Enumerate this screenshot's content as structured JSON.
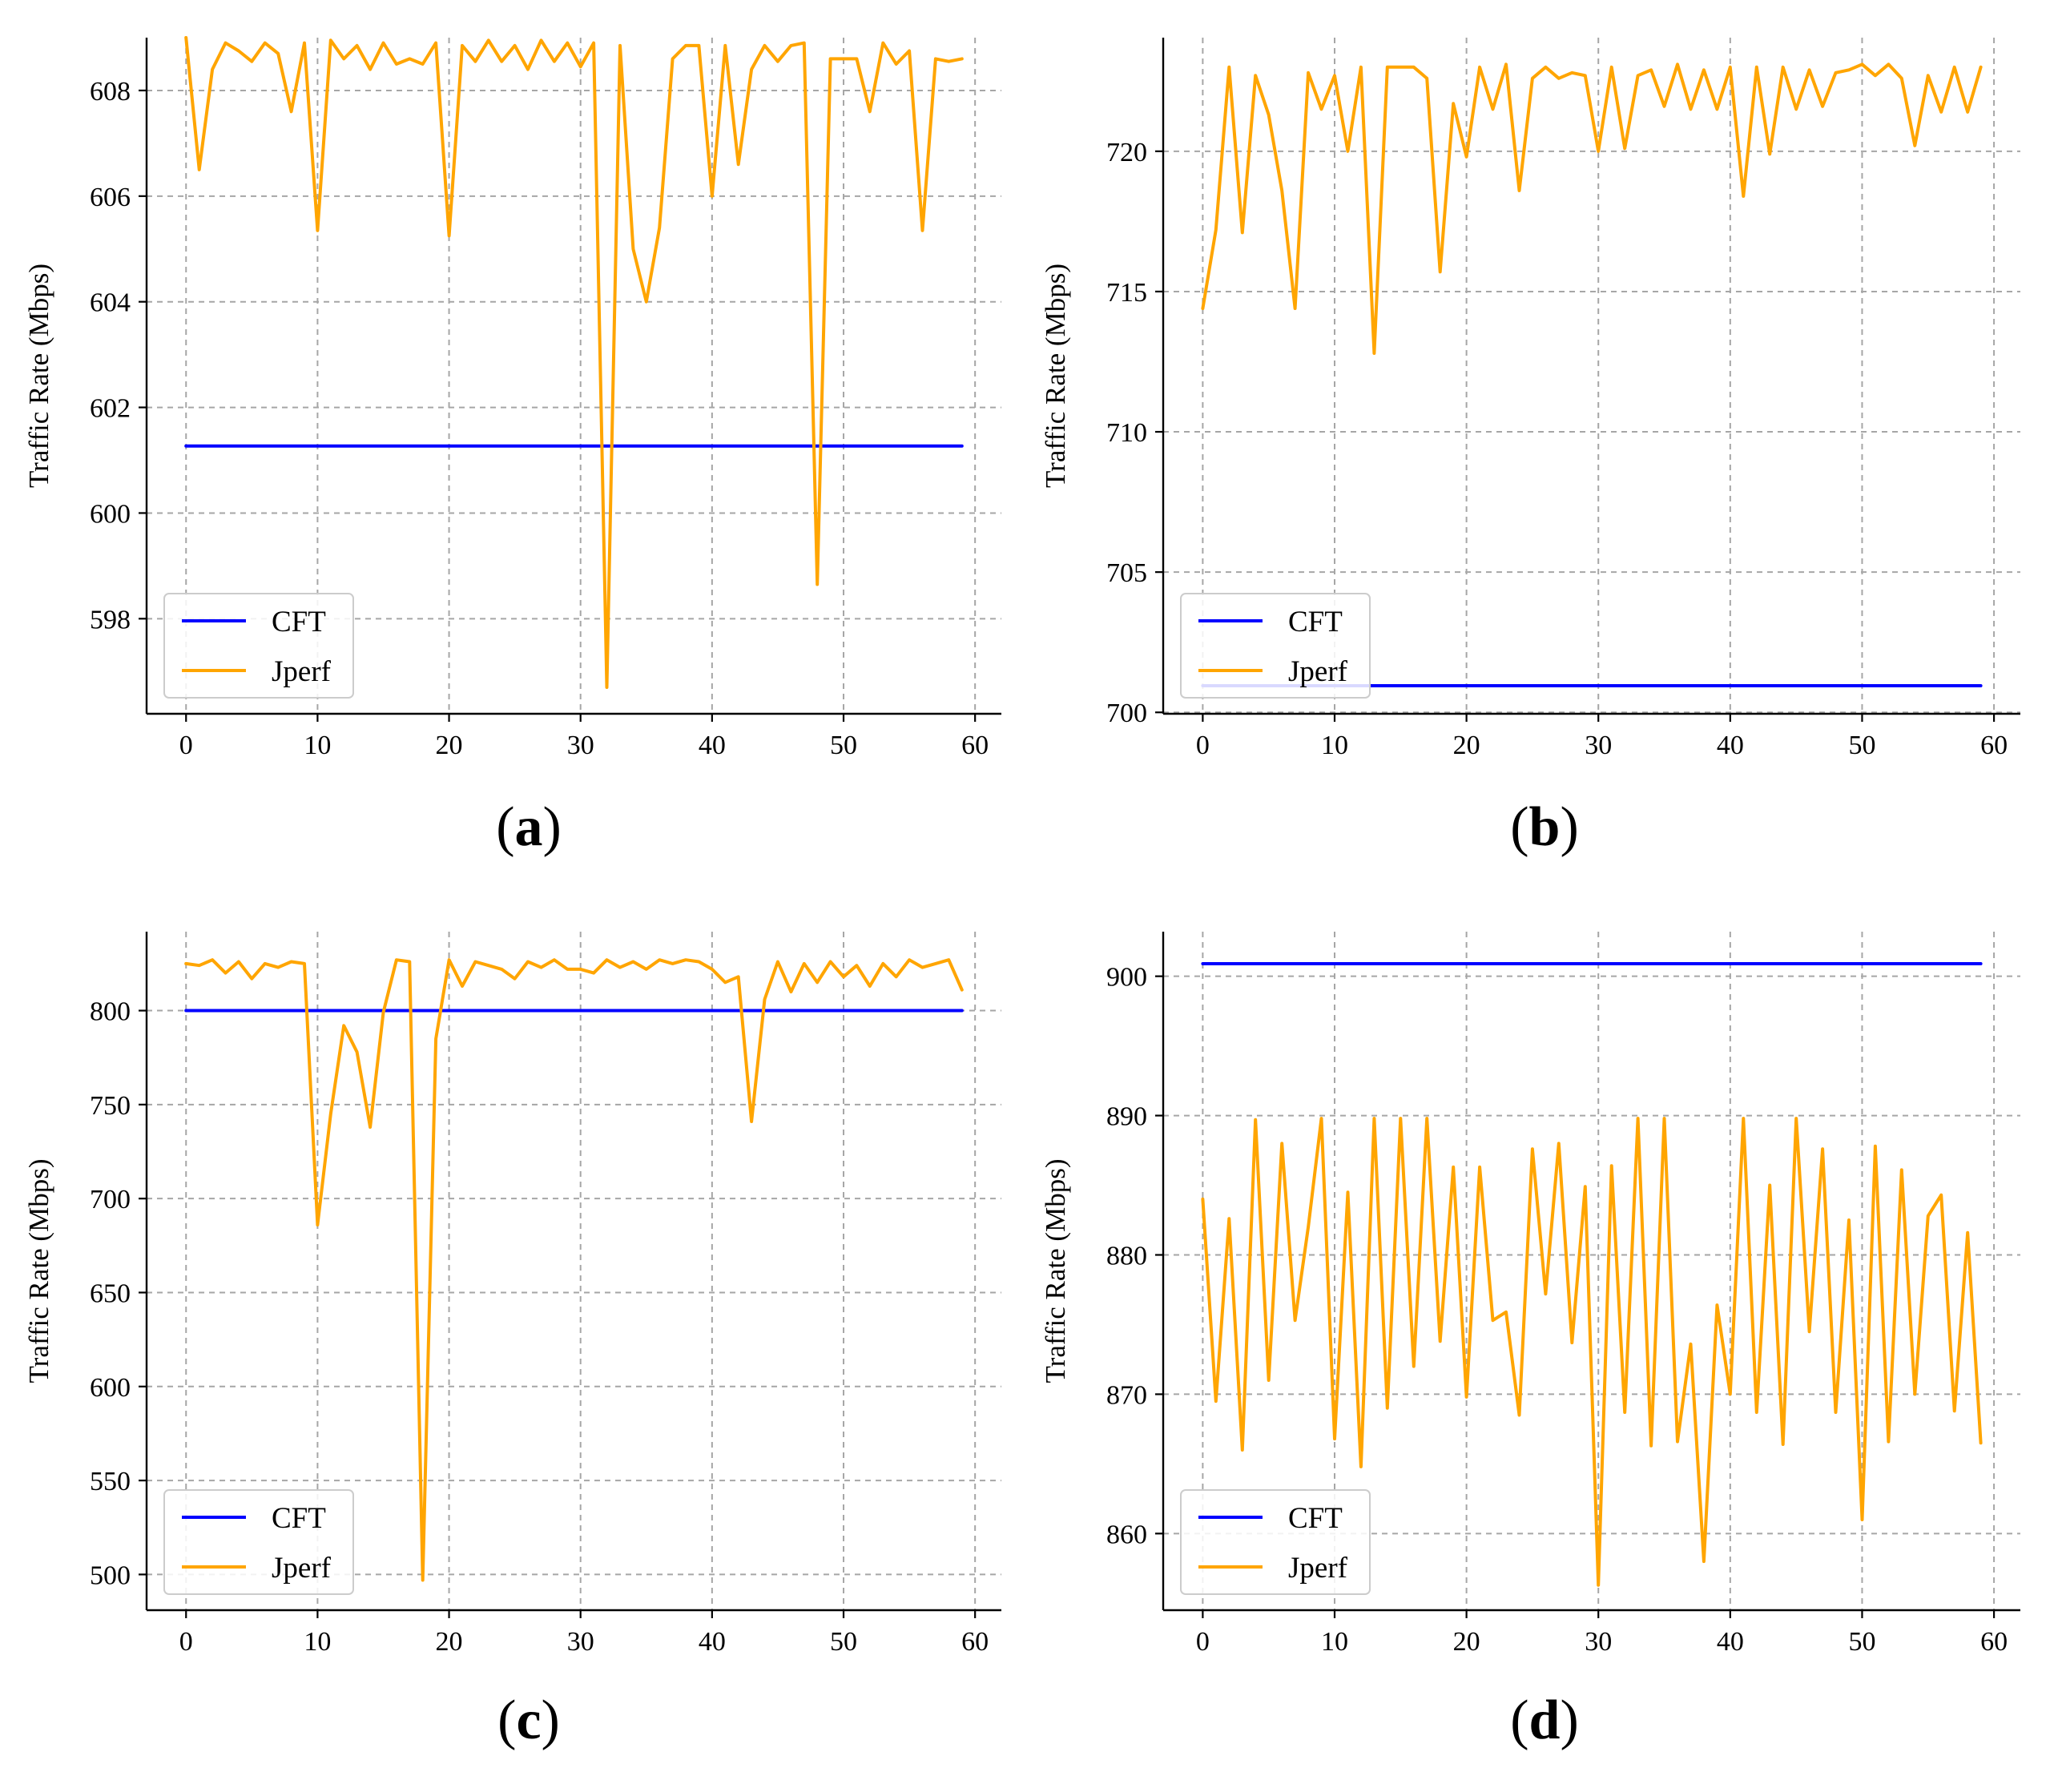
{
  "figure": {
    "panels": [
      {
        "label_prefix": "(",
        "label_letter": "a",
        "label_suffix": ")"
      },
      {
        "label_prefix": "(",
        "label_letter": "b",
        "label_suffix": ")"
      },
      {
        "label_prefix": "(",
        "label_letter": "c",
        "label_suffix": ")"
      },
      {
        "label_prefix": "(",
        "label_letter": "d",
        "label_suffix": ")"
      }
    ]
  },
  "chart_data": [
    {
      "type": "line",
      "panel": "a",
      "title": "",
      "xlabel": "",
      "ylabel": "Traffic Rate (Mbps)",
      "xlim": [
        -3,
        62
      ],
      "ylim": [
        596.2,
        609.0
      ],
      "xticks": [
        0,
        10,
        20,
        30,
        40,
        50,
        60
      ],
      "yticks": [
        598,
        600,
        602,
        604,
        606,
        608
      ],
      "grid": true,
      "legend_position": "lower-left",
      "series": [
        {
          "name": "CFT",
          "color": "#0000ff",
          "x": [
            0,
            59
          ],
          "y": [
            601.27,
            601.27
          ]
        },
        {
          "name": "Jperf",
          "color": "#ffa500",
          "y": [
            609.0,
            606.5,
            608.4,
            608.9,
            608.75,
            608.55,
            608.9,
            608.7,
            607.6,
            608.9,
            605.35,
            608.95,
            608.6,
            608.85,
            608.4,
            608.9,
            608.5,
            608.6,
            608.5,
            608.9,
            605.25,
            608.85,
            608.55,
            608.95,
            608.55,
            608.85,
            608.4,
            608.95,
            608.55,
            608.9,
            608.45,
            608.9,
            596.7,
            608.85,
            605.0,
            604.0,
            605.4,
            608.6,
            608.85,
            608.85,
            606.0,
            608.85,
            606.6,
            608.4,
            608.85,
            608.55,
            608.85,
            608.9,
            598.65,
            608.6,
            608.6,
            608.6,
            607.6,
            608.9,
            608.5,
            608.75,
            605.35,
            608.6,
            608.55,
            608.6
          ]
        }
      ]
    },
    {
      "type": "line",
      "panel": "b",
      "title": "",
      "xlabel": "",
      "ylabel": "Traffic Rate (Mbps)",
      "xlim": [
        -3,
        62
      ],
      "ylim": [
        699.95,
        724.05
      ],
      "xticks": [
        0,
        10,
        20,
        30,
        40,
        50,
        60
      ],
      "yticks": [
        700,
        705,
        710,
        715,
        720
      ],
      "grid": true,
      "legend_position": "lower-left",
      "series": [
        {
          "name": "CFT",
          "color": "#0000ff",
          "x": [
            0,
            59
          ],
          "y": [
            700.95,
            700.95
          ]
        },
        {
          "name": "Jperf",
          "color": "#ffa500",
          "y": [
            714.4,
            717.2,
            723.0,
            717.1,
            722.7,
            721.3,
            718.6,
            714.4,
            722.8,
            721.5,
            722.7,
            720.0,
            723.0,
            712.8,
            723.0,
            723.0,
            723.0,
            722.6,
            715.7,
            721.7,
            719.8,
            723.0,
            721.5,
            723.1,
            718.6,
            722.6,
            723.0,
            722.6,
            722.8,
            722.7,
            720.0,
            723.0,
            720.1,
            722.7,
            722.9,
            721.6,
            723.1,
            721.5,
            722.9,
            721.5,
            723.0,
            718.4,
            723.0,
            719.9,
            723.0,
            721.5,
            722.9,
            721.6,
            722.8,
            722.9,
            723.1,
            722.7,
            723.1,
            722.6,
            720.2,
            722.7,
            721.4,
            723.0,
            721.4,
            723.0
          ]
        }
      ]
    },
    {
      "type": "line",
      "panel": "c",
      "title": "",
      "xlabel": "",
      "ylabel": "Traffic Rate (Mbps)",
      "xlim": [
        -3,
        62
      ],
      "ylim": [
        481,
        842
      ],
      "xticks": [
        0,
        10,
        20,
        30,
        40,
        50,
        60
      ],
      "yticks": [
        500,
        550,
        600,
        650,
        700,
        750,
        800
      ],
      "grid": true,
      "legend_position": "lower-left",
      "series": [
        {
          "name": "CFT",
          "color": "#0000ff",
          "x": [
            0,
            59
          ],
          "y": [
            800,
            800
          ]
        },
        {
          "name": "Jperf",
          "color": "#ffa500",
          "y": [
            825,
            824,
            827,
            820,
            826,
            817,
            825,
            823,
            826,
            825,
            686,
            745,
            792,
            778,
            738,
            799,
            827,
            826,
            497,
            785,
            827,
            813,
            826,
            824,
            822,
            817,
            826,
            823,
            827,
            822,
            822,
            820,
            827,
            823,
            826,
            822,
            827,
            825,
            827,
            826,
            822,
            815,
            818,
            741,
            806,
            826,
            810,
            825,
            815,
            826,
            818,
            824,
            813,
            825,
            818,
            827,
            823,
            825,
            827,
            811
          ]
        }
      ]
    },
    {
      "type": "line",
      "panel": "d",
      "title": "",
      "xlabel": "",
      "ylabel": "Traffic Rate (Mbps)",
      "xlim": [
        -3,
        62
      ],
      "ylim": [
        854.5,
        903.2
      ],
      "xticks": [
        0,
        10,
        20,
        30,
        40,
        50,
        60
      ],
      "yticks": [
        860,
        870,
        880,
        890,
        900
      ],
      "grid": true,
      "legend_position": "lower-left",
      "series": [
        {
          "name": "CFT",
          "color": "#0000ff",
          "x": [
            0,
            59
          ],
          "y": [
            900.9,
            900.9
          ]
        },
        {
          "name": "Jperf",
          "color": "#ffa500",
          "y": [
            884.0,
            869.5,
            882.6,
            866.0,
            889.7,
            871.0,
            888.0,
            875.3,
            882.0,
            889.8,
            866.8,
            884.5,
            864.8,
            889.8,
            869.0,
            889.8,
            872.0,
            889.8,
            873.8,
            886.3,
            869.8,
            886.3,
            875.3,
            875.9,
            868.5,
            887.6,
            877.2,
            888.0,
            873.7,
            884.9,
            856.3,
            886.4,
            868.7,
            889.8,
            866.3,
            889.8,
            866.6,
            873.6,
            858.0,
            876.4,
            870.0,
            889.8,
            868.7,
            885.0,
            866.4,
            889.8,
            874.5,
            887.6,
            868.7,
            882.5,
            861.0,
            887.8,
            866.6,
            886.1,
            870.0,
            882.8,
            884.3,
            868.8,
            881.6,
            866.5
          ]
        }
      ]
    }
  ]
}
